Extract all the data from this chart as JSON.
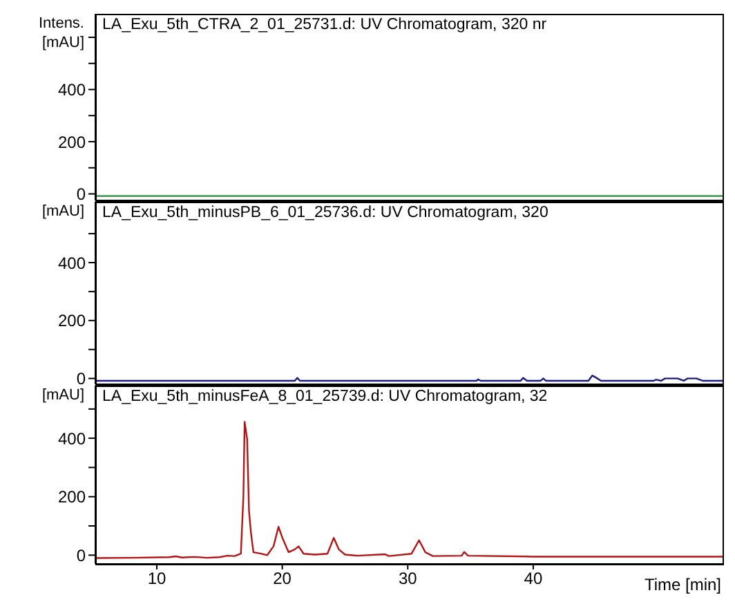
{
  "chart_data": [
    {
      "type": "line",
      "title": "LA_Exu_5th_CTRA_2_01_25731.d: UV Chromatogram, 320 nr",
      "ylabel": "Intens. [mAU]",
      "xlim": [
        5.1,
        55.2
      ],
      "ylim": [
        -25,
        690
      ],
      "yticks": [
        0,
        {
          "value": 100,
          "label": null
        },
        200,
        {
          "value": 300,
          "label": null
        },
        400,
        {
          "value": 500,
          "label": null
        },
        {
          "value": 600,
          "label": null
        }
      ],
      "tick_labels": "y",
      "marker": "none",
      "line_style": "solid",
      "series": [
        {
          "color": "#2a8a3a",
          "x": [
            5.1,
            55.2
          ],
          "values": [
            -8,
            -8
          ]
        }
      ]
    },
    {
      "type": "line",
      "title": "LA_Exu_5th_minusPB_6_01_25736.d: UV Chromatogram, 320",
      "ylabel": "[mAU]",
      "xlim": [
        5.1,
        55.2
      ],
      "ylim": [
        -20,
        610
      ],
      "yticks": [
        0,
        {
          "value": 100,
          "label": null
        },
        200,
        {
          "value": 300,
          "label": null
        },
        400,
        {
          "value": 500,
          "label": null
        }
      ],
      "tick_labels": "y",
      "marker": "none",
      "line_style": "solid",
      "series": [
        {
          "color": "#1c1c80",
          "x": [
            5.1,
            21.0,
            21.2,
            21.4,
            35.5,
            35.6,
            35.8,
            39,
            39.2,
            39.5,
            40.6,
            40.8,
            41,
            44.4,
            44.7,
            45,
            45.4,
            49.6,
            49.8,
            50.2,
            50.5,
            51.5,
            52,
            52.3,
            53,
            53.5,
            55.2
          ],
          "values": [
            -8,
            -8,
            2,
            -8,
            -8,
            -3,
            -8,
            -8,
            2,
            -8,
            -8,
            0,
            -8,
            -8,
            10,
            3,
            -8,
            -8,
            -4,
            -8,
            0,
            0,
            -8,
            0,
            0,
            -8,
            -8
          ]
        }
      ]
    },
    {
      "type": "line",
      "title": "LA_Exu_5th_minusFeA_8_01_25739.d: UV Chromatogram, 32",
      "ylabel": "[mAU]",
      "xlabel": "Time [min]",
      "xlim": [
        5.1,
        55.2
      ],
      "ylim": [
        -30,
        580
      ],
      "xticks": [
        10,
        20,
        30,
        40
      ],
      "yticks": [
        0,
        {
          "value": 100,
          "label": null
        },
        200,
        {
          "value": 300,
          "label": null
        },
        400,
        {
          "value": 500,
          "label": null
        }
      ],
      "marker": "none",
      "line_style": "solid",
      "series": [
        {
          "color": "#b41414",
          "x": [
            5.1,
            8,
            11,
            11.5,
            12,
            13,
            14,
            15,
            15.6,
            16.2,
            16.7,
            16.9,
            17.0,
            17.2,
            17.35,
            17.5,
            17.7,
            18.3,
            18.8,
            19.3,
            19.7,
            20.0,
            20.5,
            21.0,
            21.3,
            21.7,
            22.6,
            23.6,
            24.1,
            24.5,
            25,
            26,
            28.2,
            28.5,
            30.3,
            30.9,
            31.4,
            32,
            34.3,
            34.5,
            34.8,
            40,
            50,
            55.2
          ],
          "values": [
            -10,
            -9,
            -7,
            -4,
            -8,
            -6,
            -9,
            -7,
            -2,
            -3,
            5,
            200,
            456,
            397,
            150,
            78,
            10,
            5,
            0,
            30,
            97,
            60,
            10,
            20,
            30,
            5,
            2,
            5,
            59,
            20,
            2,
            -2,
            3,
            -3,
            5,
            51,
            10,
            -3,
            -2,
            11,
            -2,
            -5,
            -5,
            -5
          ]
        }
      ]
    }
  ]
}
